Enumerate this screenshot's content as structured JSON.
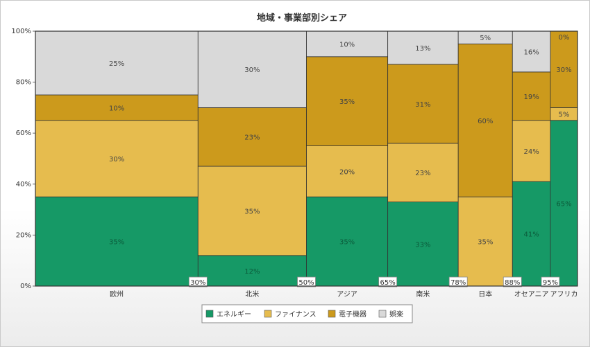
{
  "chart_data": {
    "type": "mekko",
    "title": "地域・事業部別シェア",
    "y_ticks": [
      "0%",
      "20%",
      "40%",
      "60%",
      "80%",
      "100%"
    ],
    "ylim": [
      0,
      100
    ],
    "xlim": [
      0,
      100
    ],
    "legend_position": "bottom",
    "series": [
      {
        "name": "エネルギー",
        "color": "#169966"
      },
      {
        "name": "ファイナンス",
        "color": "#e6bc4e"
      },
      {
        "name": "電子機器",
        "color": "#cc9a1c"
      },
      {
        "name": "娯楽",
        "color": "#d9d9d9"
      }
    ],
    "categories": [
      {
        "name": "欧州",
        "x_start": 0,
        "x_end": 30,
        "end_label": "30%",
        "values": [
          35,
          30,
          10,
          25
        ]
      },
      {
        "name": "北米",
        "x_start": 30,
        "x_end": 50,
        "end_label": "50%",
        "values": [
          12,
          35,
          23,
          30
        ]
      },
      {
        "name": "アジア",
        "x_start": 50,
        "x_end": 65,
        "end_label": "65%",
        "values": [
          35,
          20,
          35,
          10
        ]
      },
      {
        "name": "南米",
        "x_start": 65,
        "x_end": 78,
        "end_label": "78%",
        "values": [
          33,
          23,
          31,
          13
        ]
      },
      {
        "name": "日本",
        "x_start": 78,
        "x_end": 88,
        "end_label": "88%",
        "values": [
          0,
          35,
          60,
          5
        ]
      },
      {
        "name": "オセアニア",
        "x_start": 88,
        "x_end": 95,
        "end_label": "95%",
        "values": [
          41,
          24,
          19,
          16
        ]
      },
      {
        "name": "アフリカ",
        "x_start": 95,
        "x_end": 100,
        "end_label": "",
        "values": [
          65,
          5,
          30,
          0
        ]
      }
    ]
  }
}
